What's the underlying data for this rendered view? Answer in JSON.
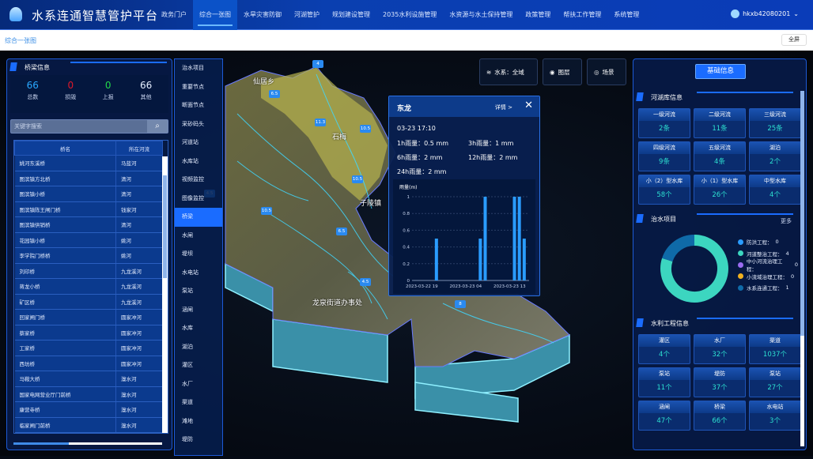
{
  "header": {
    "title": "水系连通智慧管护平台",
    "nav": [
      "政务门户",
      "综合一张图",
      "水旱灾害防御",
      "河湖管护",
      "规划建设管理",
      "2035水利设施管理",
      "水资源与水土保持管理",
      "政策管理",
      "帮扶工作管理",
      "系统管理"
    ],
    "active_nav": 1,
    "user": "hkxb42080201"
  },
  "breadcrumb": "综合一张图",
  "fullscreen_label": "全屏",
  "left_panel": {
    "title": "桥梁信息",
    "stats": [
      {
        "value": "66",
        "label": "总数",
        "color": "#2aa8ff"
      },
      {
        "value": "0",
        "label": "损毁",
        "color": "#e0182a"
      },
      {
        "value": "0",
        "label": "上报",
        "color": "#22d84a"
      },
      {
        "value": "66",
        "label": "其他",
        "color": "#e6eeff"
      }
    ],
    "search_placeholder": "关键字搜索",
    "columns": [
      "桥名",
      "所在河流"
    ],
    "rows": [
      [
        "姚河东溪桥",
        "马蓝河"
      ],
      [
        "图滨镇方北桥",
        "清河"
      ],
      [
        "图滨镇小桥",
        "清河"
      ],
      [
        "图滨镇陈王闸门桥",
        "钱家河"
      ],
      [
        "图滨镇供销桥",
        "清河"
      ],
      [
        "花园镇小桥",
        "姚河"
      ],
      [
        "李学院门桥桥",
        "姚河"
      ],
      [
        "刘印桥",
        "九龙溪河"
      ],
      [
        "蒋龙小桥",
        "九龙溪河"
      ],
      [
        "矿区桥",
        "九龙溪河"
      ],
      [
        "回家闸门桥",
        "圆家冲河"
      ],
      [
        "蔡家桥",
        "圆家冲河"
      ],
      [
        "工家桥",
        "圆家冲河"
      ],
      [
        "西坊桥",
        "圆家冲河"
      ],
      [
        "马鞍大桥",
        "溴水河"
      ],
      [
        "国家电网营业厅门前桥",
        "溴水河"
      ],
      [
        "康营寺桥",
        "溴水河"
      ],
      [
        "临家闸门前桥",
        "溴水河"
      ]
    ]
  },
  "layers": {
    "items": [
      "治水项目",
      "重要节点",
      "断面节点",
      "采砂码头",
      "河道站",
      "水库站",
      "视频监控",
      "图像监控",
      "桥梁",
      "水闸",
      "堤坝",
      "水电站",
      "泵站",
      "涵闸",
      "水库",
      "湖泊",
      "灌区",
      "水厂",
      "渠道",
      "滩地",
      "堤防"
    ],
    "active": 8
  },
  "map_buttons": [
    {
      "icon": "water-icon",
      "label": "水系：全域"
    },
    {
      "icon": "layers-icon",
      "label": "图层"
    },
    {
      "icon": "scene-icon",
      "label": "场景"
    }
  ],
  "map_labels": [
    "仙居乡",
    "石梅",
    "子陵镇",
    "龙泉街道办事处"
  ],
  "map_pins": [
    "4",
    "6.5",
    "11.3",
    "10.5",
    "10.5",
    "4.5",
    "6.5",
    "10.5",
    "4.5",
    "8"
  ],
  "popup": {
    "title": "东龙",
    "detail_label": "详情 >",
    "time": "03-23 17:10",
    "rain": [
      {
        "label": "1h雨量：",
        "value": "0.5 mm"
      },
      {
        "label": "3h雨量：",
        "value": "1 mm"
      },
      {
        "label": "6h雨量：",
        "value": "2 mm"
      },
      {
        "label": "12h雨量：",
        "value": "2 mm"
      },
      {
        "label": "24h雨量：",
        "value": "2 mm"
      }
    ]
  },
  "chart_data": {
    "type": "bar",
    "ylabel": "雨量(m)",
    "ylim": [
      0,
      1
    ],
    "yticks": [
      "0",
      "0.2",
      "0.4",
      "0.6",
      "0.8",
      "1"
    ],
    "xlim": [
      "2023-03-22 17",
      "2023-03-23 17"
    ],
    "xticks": [
      "2023-03-22 19",
      "2023-03-23 04",
      "2023-03-23 13"
    ],
    "grid": true,
    "color": "#2a9cff",
    "points": [
      {
        "x": "2023-03-22 22",
        "y": 0.5
      },
      {
        "x": "2023-03-23 07",
        "y": 0.5
      },
      {
        "x": "2023-03-23 08",
        "y": 1
      },
      {
        "x": "2023-03-23 14",
        "y": 1
      },
      {
        "x": "2023-03-23 15",
        "y": 1
      },
      {
        "x": "2023-03-23 16",
        "y": 0.5
      }
    ]
  },
  "right_panel": {
    "tab": "基础信息",
    "river": {
      "title": "河湖库信息",
      "cells": [
        {
          "label": "一级河流",
          "value": "2条"
        },
        {
          "label": "二级河流",
          "value": "11条"
        },
        {
          "label": "三级河流",
          "value": "25条"
        },
        {
          "label": "四级河流",
          "value": "9条"
        },
        {
          "label": "五级河流",
          "value": "4条"
        },
        {
          "label": "湖泊",
          "value": "2个"
        },
        {
          "label": "小（2）型水库",
          "value": "58个"
        },
        {
          "label": "小（1）型水库",
          "value": "26个"
        },
        {
          "label": "中型水库",
          "value": "4个"
        }
      ]
    },
    "projects": {
      "title": "治水项目",
      "more": "更多",
      "legend": [
        {
          "label": "防洪工程：",
          "value": 0,
          "color": "#2a9cff"
        },
        {
          "label": "河道整治工程：",
          "value": 4,
          "color": "#3cd6c0"
        },
        {
          "label": "中小河流治理工程：",
          "value": 0,
          "color": "#9a6cf0"
        },
        {
          "label": "小流域治理工程：",
          "value": 0,
          "color": "#f0b020"
        },
        {
          "label": "水系连通工程：",
          "value": 1,
          "color": "#0f6aa8"
        }
      ]
    },
    "works": {
      "title": "水利工程信息",
      "cells": [
        {
          "label": "灌区",
          "value": "4个"
        },
        {
          "label": "水厂",
          "value": "32个"
        },
        {
          "label": "渠道",
          "value": "1037个"
        },
        {
          "label": "泵站",
          "value": "11个"
        },
        {
          "label": "堤防",
          "value": "37个"
        },
        {
          "label": "泵站",
          "value": "27个"
        },
        {
          "label": "涵闸",
          "value": "47个"
        },
        {
          "label": "桥梁",
          "value": "66个"
        },
        {
          "label": "水电站",
          "value": "3个"
        }
      ]
    }
  }
}
